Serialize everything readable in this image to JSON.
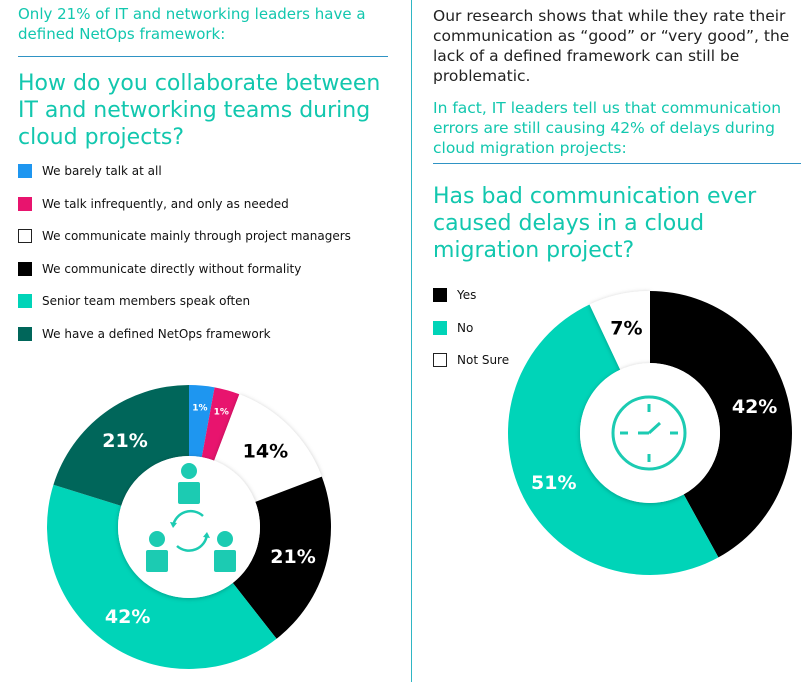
{
  "left": {
    "intro": "Only 21% of IT and networking leaders have a defined NetOps framework:",
    "question": "How do you collaborate between IT and networking teams during cloud projects?",
    "icon": "team-collaboration-icon"
  },
  "right": {
    "intro": "Our research shows that while they rate their communication as “good” or “very good”, the lack of a defined framework can still be problematic.",
    "highlight": "In fact, IT leaders tell us that communication errors are still causing 42% of delays during cloud migration projects:",
    "question": "Has bad communication ever caused delays in a cloud migration project?",
    "icon": "clock-icon"
  },
  "chart_data": [
    {
      "type": "pie",
      "donut": true,
      "title": "How do you collaborate between IT and networking teams during cloud projects?",
      "legend_position": "top-left",
      "slices": [
        {
          "label": "We barely talk at all",
          "value": 1,
          "display": "1%",
          "color": "#1e96f0",
          "text_color": "#ffffff"
        },
        {
          "label": "We talk infrequently, and only as needed",
          "value": 1,
          "display": "1%",
          "color": "#e8146e",
          "text_color": "#ffffff"
        },
        {
          "label": "We communicate mainly through project managers",
          "value": 14,
          "display": "14%",
          "color": "#ffffff",
          "text_color": "#000000"
        },
        {
          "label": "We communicate directly without formality",
          "value": 21,
          "display": "21%",
          "color": "#000000",
          "text_color": "#ffffff"
        },
        {
          "label": "Senior team members speak often",
          "value": 42,
          "display": "42%",
          "color": "#00d4b8",
          "text_color": "#ffffff"
        },
        {
          "label": "We have a defined NetOps framework",
          "value": 21,
          "display": "21%",
          "color": "#00665a",
          "text_color": "#ffffff"
        }
      ]
    },
    {
      "type": "pie",
      "donut": true,
      "title": "Has bad communication ever caused delays in a cloud migration project?",
      "legend_position": "top-left",
      "slices": [
        {
          "label": "Yes",
          "value": 42,
          "display": "42%",
          "color": "#000000",
          "text_color": "#ffffff"
        },
        {
          "label": "No",
          "value": 51,
          "display": "51%",
          "color": "#00d4b8",
          "text_color": "#ffffff"
        },
        {
          "label": "Not Sure",
          "value": 7,
          "display": "7%",
          "color": "#ffffff",
          "text_color": "#000000"
        }
      ]
    }
  ]
}
